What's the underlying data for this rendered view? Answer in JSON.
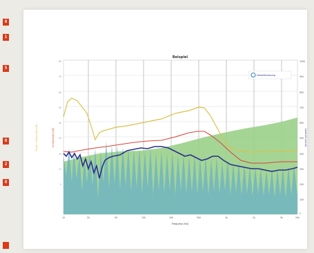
{
  "sidebar": {
    "markers": [
      "0",
      "1",
      "5",
      "0",
      "2",
      "8",
      ""
    ]
  },
  "chart_data": {
    "type": "line",
    "title": "Beispiel",
    "xlabel": "Frequenz (Hz)",
    "ylabel_left_outer": "Pegel / Amplitude (dB)",
    "ylabel_left_inner": "Schallpegel (dB)",
    "ylabel_right": "Lautheit (sone)",
    "legend": "Gesamtmessung",
    "x_ticks": [
      "10",
      "20",
      "50",
      "100",
      "200",
      "500",
      "1k",
      "2k",
      "5k",
      "10k",
      "20k"
    ],
    "y_ticks_right": [
      "1000",
      "900",
      "800",
      "700",
      "600",
      "500",
      "400",
      "300",
      "200",
      "100",
      "0"
    ],
    "colors": {
      "yellow": "#d9c24a",
      "red": "#d9433a",
      "green": "#9bd08a",
      "blue_dark": "#2a2f8c",
      "blue_light": "#2a7fb0"
    }
  }
}
